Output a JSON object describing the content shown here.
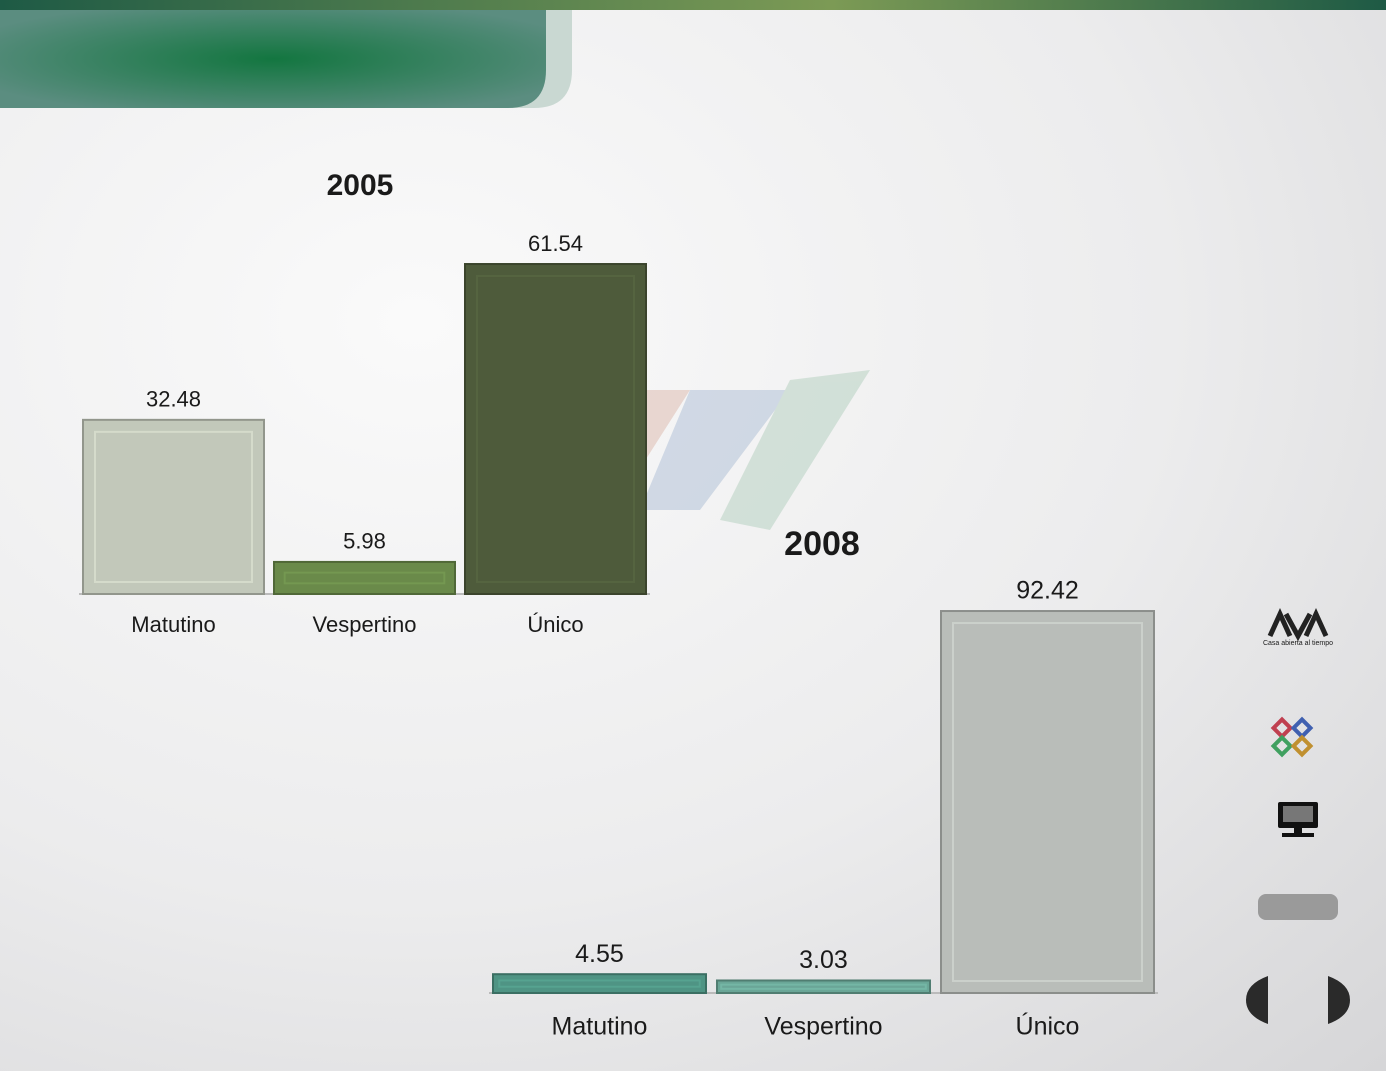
{
  "chart_data": [
    {
      "type": "bar",
      "title": "2005",
      "categories": [
        "Matutino",
        "Vespertino",
        "Único"
      ],
      "values": [
        32.48,
        5.98,
        61.54
      ],
      "colors": [
        "#c2c8ba",
        "#6a8a4a",
        "#4e5b3b"
      ]
    },
    {
      "type": "bar",
      "title": "2008",
      "categories": [
        "Matutino",
        "Vespertino",
        "Único"
      ],
      "values": [
        4.55,
        3.03,
        92.42
      ],
      "colors": [
        "#4f9484",
        "#6aa697",
        "#b9bdb9"
      ]
    }
  ],
  "sidebar": {
    "logo_caption": "Casa abierta al tiempo"
  }
}
